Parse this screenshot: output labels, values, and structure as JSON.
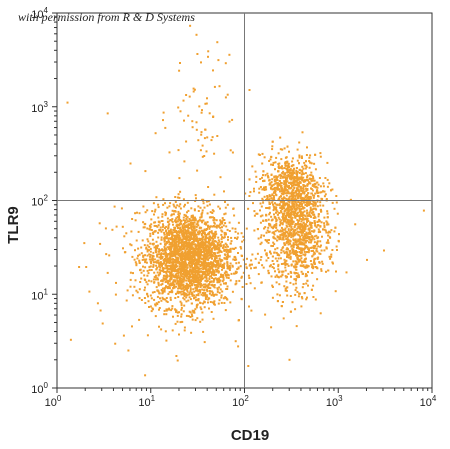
{
  "watermark": "with permission from R & D Systems",
  "chart_data": {
    "type": "scatter",
    "xlabel": "CD19",
    "ylabel": "TLR9",
    "x_scale": "log",
    "y_scale": "log",
    "xlim": [
      1,
      10000
    ],
    "ylim": [
      1,
      10000
    ],
    "x_ticks": [
      {
        "base": "10",
        "exp": "0"
      },
      {
        "base": "10",
        "exp": "1"
      },
      {
        "base": "10",
        "exp": "2"
      },
      {
        "base": "10",
        "exp": "3"
      },
      {
        "base": "10",
        "exp": "4"
      }
    ],
    "y_ticks": [
      {
        "base": "10",
        "exp": "0"
      },
      {
        "base": "10",
        "exp": "1"
      },
      {
        "base": "10",
        "exp": "2"
      },
      {
        "base": "10",
        "exp": "3"
      },
      {
        "base": "10",
        "exp": "4"
      }
    ],
    "quadrant_lines": {
      "x": 100,
      "y": 100
    },
    "grid": false,
    "point_color": "#F0A030",
    "populations": [
      {
        "description": "CD19 negative, TLR9 low",
        "x_center": 25,
        "y_center": 25,
        "x_range": [
          6,
          100
        ],
        "y_range": [
          4,
          90
        ]
      },
      {
        "description": "CD19 positive, TLR9 low to positive",
        "x_center": 350,
        "y_center": 45,
        "x_range": [
          110,
          900
        ],
        "y_range": [
          8,
          300
        ]
      }
    ],
    "sparse_events": [
      {
        "x": 30,
        "y": 6000
      },
      {
        "x": 50,
        "y": 5000
      },
      {
        "x": 40,
        "y": 4000
      },
      {
        "x": 20,
        "y": 3000
      },
      {
        "x": 45,
        "y": 2500
      },
      {
        "x": 30,
        "y": 700
      },
      {
        "x": 50,
        "y": 500
      },
      {
        "x": 35,
        "y": 300
      },
      {
        "x": 8000,
        "y": 80
      },
      {
        "x": 3000,
        "y": 30
      },
      {
        "x": 2,
        "y": 20
      },
      {
        "x": 3,
        "y": 5
      }
    ]
  }
}
